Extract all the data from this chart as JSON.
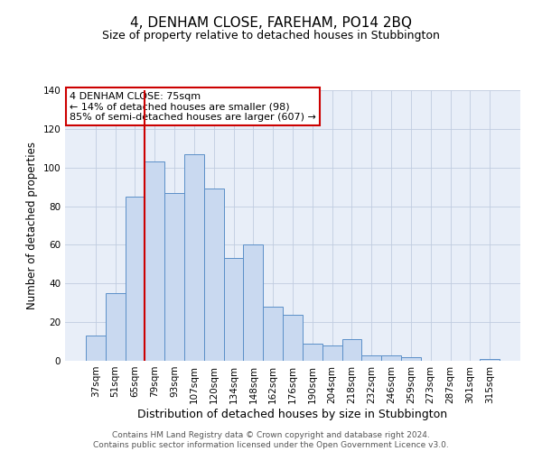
{
  "title": "4, DENHAM CLOSE, FAREHAM, PO14 2BQ",
  "subtitle": "Size of property relative to detached houses in Stubbington",
  "xlabel": "Distribution of detached houses by size in Stubbington",
  "ylabel": "Number of detached properties",
  "bar_labels": [
    "37sqm",
    "51sqm",
    "65sqm",
    "79sqm",
    "93sqm",
    "107sqm",
    "120sqm",
    "134sqm",
    "148sqm",
    "162sqm",
    "176sqm",
    "190sqm",
    "204sqm",
    "218sqm",
    "232sqm",
    "246sqm",
    "259sqm",
    "273sqm",
    "287sqm",
    "301sqm",
    "315sqm"
  ],
  "bar_values": [
    13,
    35,
    85,
    103,
    87,
    107,
    89,
    53,
    60,
    28,
    24,
    9,
    8,
    11,
    3,
    3,
    2,
    0,
    0,
    0,
    1
  ],
  "bar_color": "#c9d9f0",
  "bar_edge_color": "#5b8fc8",
  "ylim": [
    0,
    140
  ],
  "yticks": [
    0,
    20,
    40,
    60,
    80,
    100,
    120,
    140
  ],
  "vline_x_idx": 2,
  "vline_color": "#cc0000",
  "annotation_title": "4 DENHAM CLOSE: 75sqm",
  "annotation_line1": "← 14% of detached houses are smaller (98)",
  "annotation_line2": "85% of semi-detached houses are larger (607) →",
  "annotation_box_color": "#ffffff",
  "annotation_box_edge": "#cc0000",
  "footer1": "Contains HM Land Registry data © Crown copyright and database right 2024.",
  "footer2": "Contains public sector information licensed under the Open Government Licence v3.0.",
  "fig_bg_color": "#ffffff",
  "plot_bg_color": "#e8eef8",
  "grid_color": "#c0cce0",
  "title_fontsize": 11,
  "subtitle_fontsize": 9,
  "xlabel_fontsize": 9,
  "ylabel_fontsize": 8.5,
  "tick_fontsize": 7.5,
  "annotation_fontsize": 8,
  "footer_fontsize": 6.5
}
